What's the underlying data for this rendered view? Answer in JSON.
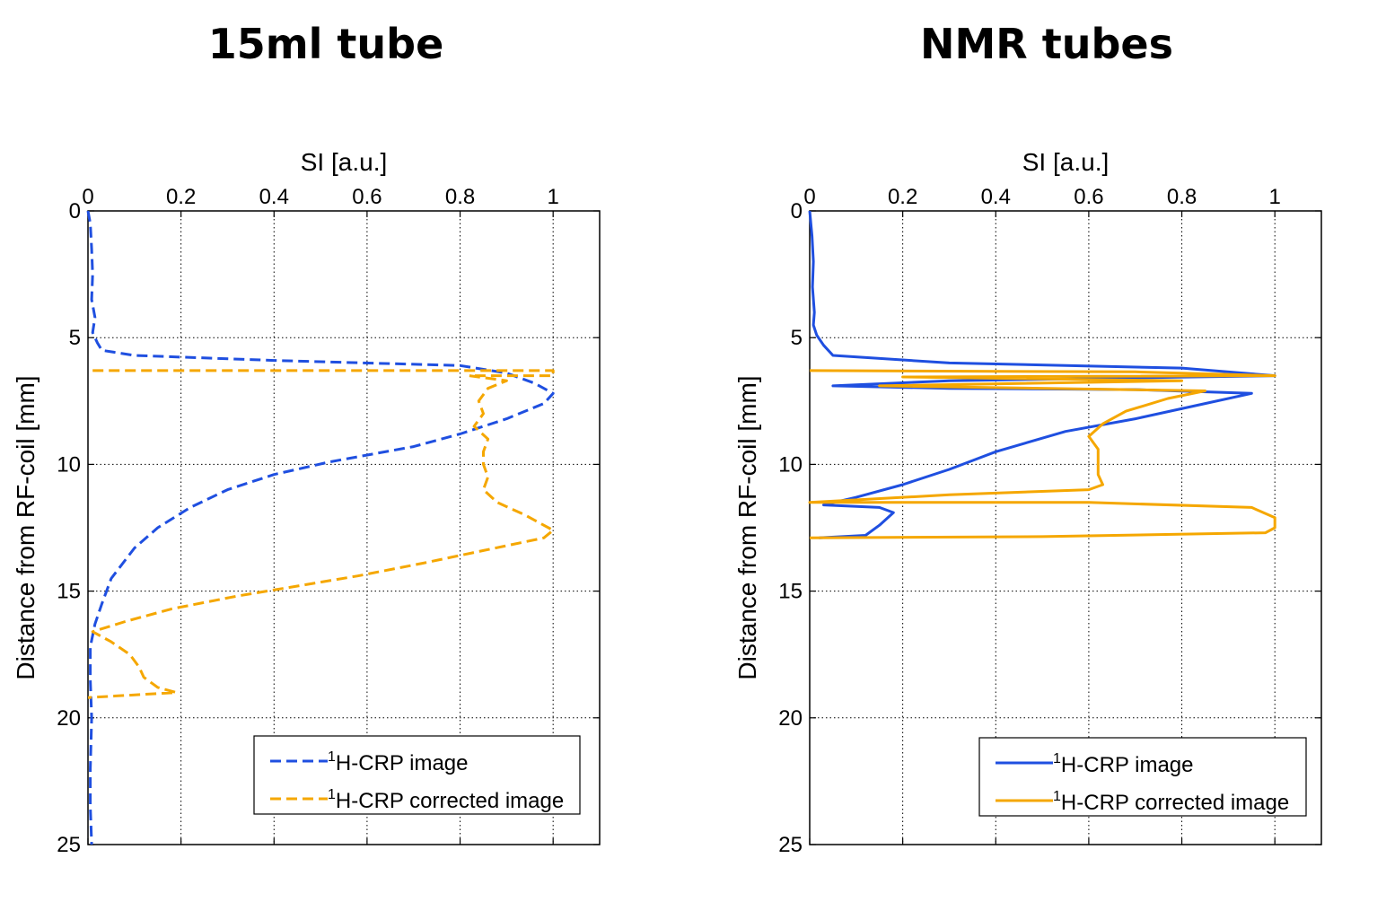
{
  "panels": {
    "left_title": "15ml tube",
    "right_title": "NMR tubes"
  },
  "colors": {
    "blue": "#1f4fe0",
    "orange": "#f5a700"
  },
  "chart_data": [
    {
      "type": "line",
      "title": "15ml tube",
      "xlabel": "SI [a.u.]",
      "ylabel": "Distance from RF-coil [mm]",
      "xlim": [
        0,
        1.1
      ],
      "ylim": [
        0,
        25
      ],
      "y_reversed": true,
      "x_axis_position": "top",
      "xticks": [
        0,
        0.2,
        0.4,
        0.6,
        0.8,
        1
      ],
      "yticks": [
        0,
        5,
        10,
        15,
        20,
        25
      ],
      "grid": true,
      "legend_position": "bottom-right",
      "line_style": "dashed",
      "series": [
        {
          "name": "1H-CRP image",
          "name_sup": "1",
          "name_rest": "H-CRP image",
          "color": "#1f4fe0",
          "points": [
            [
              0.0,
              0
            ],
            [
              0.005,
              0.5
            ],
            [
              0.008,
              1.5
            ],
            [
              0.01,
              2.5
            ],
            [
              0.008,
              3.5
            ],
            [
              0.015,
              4.2
            ],
            [
              0.01,
              4.8
            ],
            [
              0.02,
              5.2
            ],
            [
              0.03,
              5.5
            ],
            [
              0.1,
              5.7
            ],
            [
              0.4,
              5.9
            ],
            [
              0.8,
              6.1
            ],
            [
              0.9,
              6.4
            ],
            [
              0.96,
              6.8
            ],
            [
              1.0,
              7.2
            ],
            [
              0.98,
              7.6
            ],
            [
              0.9,
              8.2
            ],
            [
              0.8,
              8.8
            ],
            [
              0.7,
              9.3
            ],
            [
              0.52,
              9.9
            ],
            [
              0.4,
              10.4
            ],
            [
              0.3,
              11.0
            ],
            [
              0.22,
              11.7
            ],
            [
              0.15,
              12.5
            ],
            [
              0.1,
              13.3
            ],
            [
              0.05,
              14.5
            ],
            [
              0.03,
              15.5
            ],
            [
              0.015,
              16.3
            ],
            [
              0.005,
              17.2
            ],
            [
              0.005,
              18.5
            ],
            [
              0.008,
              20
            ],
            [
              0.005,
              22
            ],
            [
              0.005,
              23.5
            ],
            [
              0.008,
              25
            ]
          ]
        },
        {
          "name": "1H-CRP corrected image",
          "name_sup": "1",
          "name_rest": "H-CRP corrected image",
          "color": "#f5a700",
          "points": [
            [
              0.01,
              6.3
            ],
            [
              1.0,
              6.3
            ],
            [
              1.0,
              6.5
            ],
            [
              0.82,
              6.5
            ],
            [
              0.9,
              6.7
            ],
            [
              0.86,
              7.0
            ],
            [
              0.84,
              7.5
            ],
            [
              0.85,
              8.0
            ],
            [
              0.83,
              8.5
            ],
            [
              0.86,
              9.0
            ],
            [
              0.85,
              9.5
            ],
            [
              0.85,
              10.0
            ],
            [
              0.86,
              10.5
            ],
            [
              0.85,
              11.0
            ],
            [
              0.88,
              11.5
            ],
            [
              0.94,
              12.0
            ],
            [
              0.97,
              12.3
            ],
            [
              1.0,
              12.6
            ],
            [
              0.98,
              12.9
            ],
            [
              0.85,
              13.4
            ],
            [
              0.72,
              13.9
            ],
            [
              0.58,
              14.4
            ],
            [
              0.45,
              14.8
            ],
            [
              0.32,
              15.2
            ],
            [
              0.18,
              15.7
            ],
            [
              0.08,
              16.2
            ],
            [
              0.01,
              16.6
            ],
            [
              0.05,
              17.0
            ],
            [
              0.09,
              17.5
            ],
            [
              0.11,
              18.0
            ],
            [
              0.12,
              18.4
            ],
            [
              0.15,
              18.8
            ],
            [
              0.19,
              19.0
            ],
            [
              0.0,
              19.2
            ]
          ]
        }
      ]
    },
    {
      "type": "line",
      "title": "NMR tubes",
      "xlabel": "SI [a.u.]",
      "ylabel": "Distance from RF-coil [mm]",
      "xlim": [
        0,
        1.1
      ],
      "ylim": [
        0,
        25
      ],
      "y_reversed": true,
      "x_axis_position": "top",
      "xticks": [
        0,
        0.2,
        0.4,
        0.6,
        0.8,
        1
      ],
      "yticks": [
        0,
        5,
        10,
        15,
        20,
        25
      ],
      "grid": true,
      "legend_position": "bottom-right",
      "line_style": "solid",
      "series": [
        {
          "name": "1H-CRP image",
          "name_sup": "1",
          "name_rest": "H-CRP image",
          "color": "#1f4fe0",
          "points": [
            [
              0.0,
              0
            ],
            [
              0.005,
              1
            ],
            [
              0.008,
              2
            ],
            [
              0.006,
              3
            ],
            [
              0.01,
              4
            ],
            [
              0.008,
              4.5
            ],
            [
              0.015,
              4.9
            ],
            [
              0.03,
              5.3
            ],
            [
              0.05,
              5.7
            ],
            [
              0.3,
              6.0
            ],
            [
              0.8,
              6.2
            ],
            [
              1.0,
              6.5
            ],
            [
              0.3,
              6.7
            ],
            [
              0.05,
              6.9
            ],
            [
              0.3,
              7.0
            ],
            [
              0.7,
              7.05
            ],
            [
              0.95,
              7.2
            ],
            [
              0.85,
              7.6
            ],
            [
              0.7,
              8.2
            ],
            [
              0.55,
              8.7
            ],
            [
              0.4,
              9.5
            ],
            [
              0.3,
              10.2
            ],
            [
              0.2,
              10.8
            ],
            [
              0.1,
              11.3
            ],
            [
              0.03,
              11.6
            ],
            [
              0.15,
              11.7
            ],
            [
              0.18,
              11.9
            ],
            [
              0.15,
              12.4
            ],
            [
              0.12,
              12.8
            ],
            [
              0.02,
              12.9
            ]
          ]
        },
        {
          "name": "1H-CRP corrected image",
          "name_sup": "1",
          "name_rest": "H-CRP corrected image",
          "color": "#f5a700",
          "points": [
            [
              0.0,
              6.3
            ],
            [
              0.7,
              6.35
            ],
            [
              1.0,
              6.5
            ],
            [
              0.2,
              6.55
            ],
            [
              0.8,
              6.7
            ],
            [
              0.15,
              6.9
            ],
            [
              0.85,
              7.1
            ],
            [
              0.77,
              7.4
            ],
            [
              0.68,
              7.9
            ],
            [
              0.63,
              8.4
            ],
            [
              0.6,
              8.9
            ],
            [
              0.62,
              9.4
            ],
            [
              0.62,
              9.9
            ],
            [
              0.62,
              10.4
            ],
            [
              0.63,
              10.8
            ],
            [
              0.6,
              11.0
            ],
            [
              0.3,
              11.2
            ],
            [
              0.0,
              11.5
            ],
            [
              0.6,
              11.5
            ],
            [
              0.95,
              11.7
            ],
            [
              1.0,
              12.1
            ],
            [
              1.0,
              12.5
            ],
            [
              0.98,
              12.7
            ],
            [
              0.5,
              12.85
            ],
            [
              0.0,
              12.9
            ]
          ]
        }
      ]
    }
  ]
}
